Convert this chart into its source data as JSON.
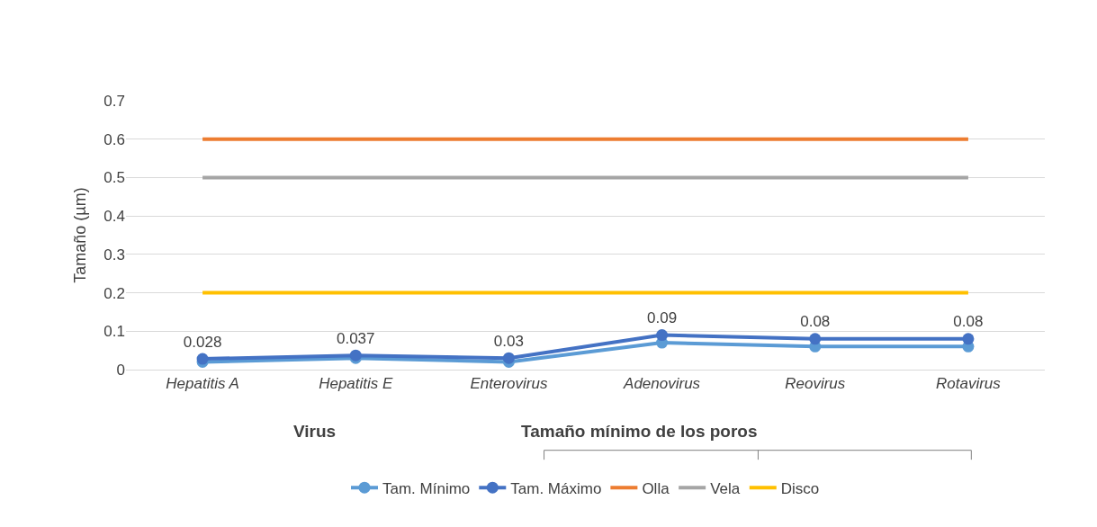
{
  "chart_data": {
    "type": "line",
    "ylabel": "Tamaño (µm)",
    "xlabel": "Virus",
    "categories": [
      "Hepatitis A",
      "Hepatitis E",
      "Enterovirus",
      "Adenovirus",
      "Reovirus",
      "Rotavirus"
    ],
    "series": [
      {
        "name": "Tam. Mínimo",
        "color": "#5b9bd5",
        "marker": "circle",
        "values": [
          0.02,
          0.03,
          0.02,
          0.07,
          0.06,
          0.06
        ]
      },
      {
        "name": "Tam. Máximo",
        "color": "#4472c4",
        "marker": "circle",
        "values": [
          0.028,
          0.037,
          0.03,
          0.09,
          0.08,
          0.08
        ],
        "value_labels": [
          "0.028",
          "0.037",
          "0.03",
          "0.09",
          "0.08",
          "0.08"
        ]
      },
      {
        "name": "Olla",
        "color": "#ed7d31",
        "marker": "none",
        "values": [
          0.6,
          0.6,
          0.6,
          0.6,
          0.6,
          0.6
        ]
      },
      {
        "name": "Vela",
        "color": "#a5a5a5",
        "marker": "none",
        "values": [
          0.5,
          0.5,
          0.5,
          0.5,
          0.5,
          0.5
        ]
      },
      {
        "name": "Disco",
        "color": "#ffc000",
        "marker": "none",
        "values": [
          0.2,
          0.2,
          0.2,
          0.2,
          0.2,
          0.2
        ]
      }
    ],
    "annotations": [
      "Tamaño mínimo de los poros"
    ],
    "ylim": [
      0,
      0.7
    ],
    "yticks": [
      0,
      0.1,
      0.2,
      0.3,
      0.4,
      0.5,
      0.6,
      0.7
    ],
    "grid": "y",
    "legend": "bottom",
    "line_style": "solid"
  }
}
